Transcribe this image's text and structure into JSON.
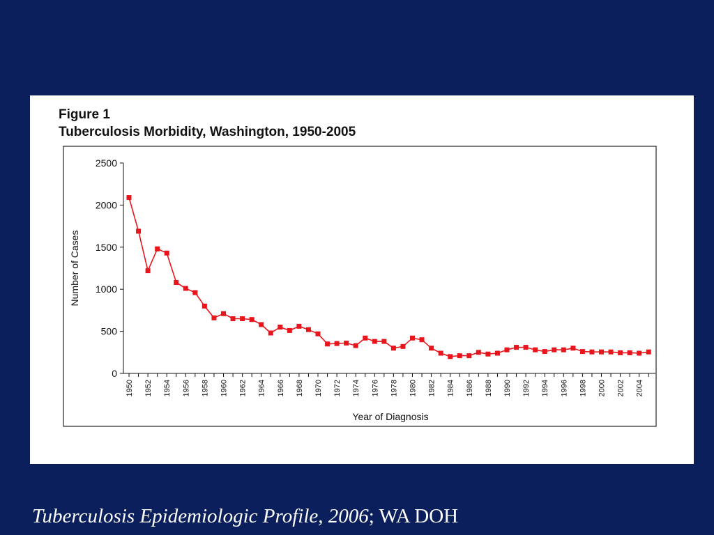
{
  "slide": {
    "background": "#0b1f5c",
    "caption": {
      "italic": "Tuberculosis Epidemiologic Profile, 2006",
      "rest": "; WA DOH"
    }
  },
  "figure": {
    "label": "Figure 1",
    "title": "Tuberculosis Morbidity, Washington, 1950-2005"
  },
  "chart_data": {
    "type": "line",
    "title": "Tuberculosis Morbidity, Washington, 1950-2005",
    "xlabel": "Year of Diagnosis",
    "ylabel": "Number of Cases",
    "ylim": [
      0,
      2500
    ],
    "yticks": [
      0,
      500,
      1000,
      1500,
      2000,
      2500
    ],
    "xticks": [
      "1950",
      "1952",
      "1954",
      "1956",
      "1958",
      "1960",
      "1962",
      "1964",
      "1966",
      "1968",
      "1970",
      "1972",
      "1974",
      "1976",
      "1978",
      "1980",
      "1982",
      "1984",
      "1986",
      "1988",
      "1990",
      "1992",
      "1994",
      "1996",
      "1998",
      "2000",
      "2002",
      "2004"
    ],
    "grid": false,
    "series_color": "#e8151c",
    "series": [
      {
        "x": [
          1950,
          1951,
          1952,
          1953,
          1954,
          1955,
          1956,
          1957,
          1958,
          1959,
          1960,
          1961,
          1962,
          1963,
          1964,
          1965,
          1966,
          1967,
          1968,
          1969,
          1970,
          1971,
          1972,
          1973,
          1974,
          1975,
          1976,
          1977,
          1978,
          1979,
          1980,
          1981,
          1982,
          1983,
          1984,
          1985,
          1986,
          1987,
          1988,
          1989,
          1990,
          1991,
          1992,
          1993,
          1994,
          1995,
          1996,
          1997,
          1998,
          1999,
          2000,
          2001,
          2002,
          2003,
          2004,
          2005
        ],
        "values": [
          2090,
          1690,
          1220,
          1480,
          1430,
          1080,
          1010,
          960,
          800,
          660,
          710,
          650,
          650,
          640,
          580,
          480,
          550,
          510,
          560,
          520,
          470,
          350,
          355,
          360,
          330,
          420,
          380,
          380,
          300,
          320,
          420,
          400,
          300,
          240,
          200,
          210,
          210,
          250,
          230,
          240,
          280,
          310,
          310,
          280,
          260,
          280,
          280,
          300,
          260,
          255,
          255,
          255,
          245,
          245,
          240,
          255
        ]
      }
    ]
  }
}
